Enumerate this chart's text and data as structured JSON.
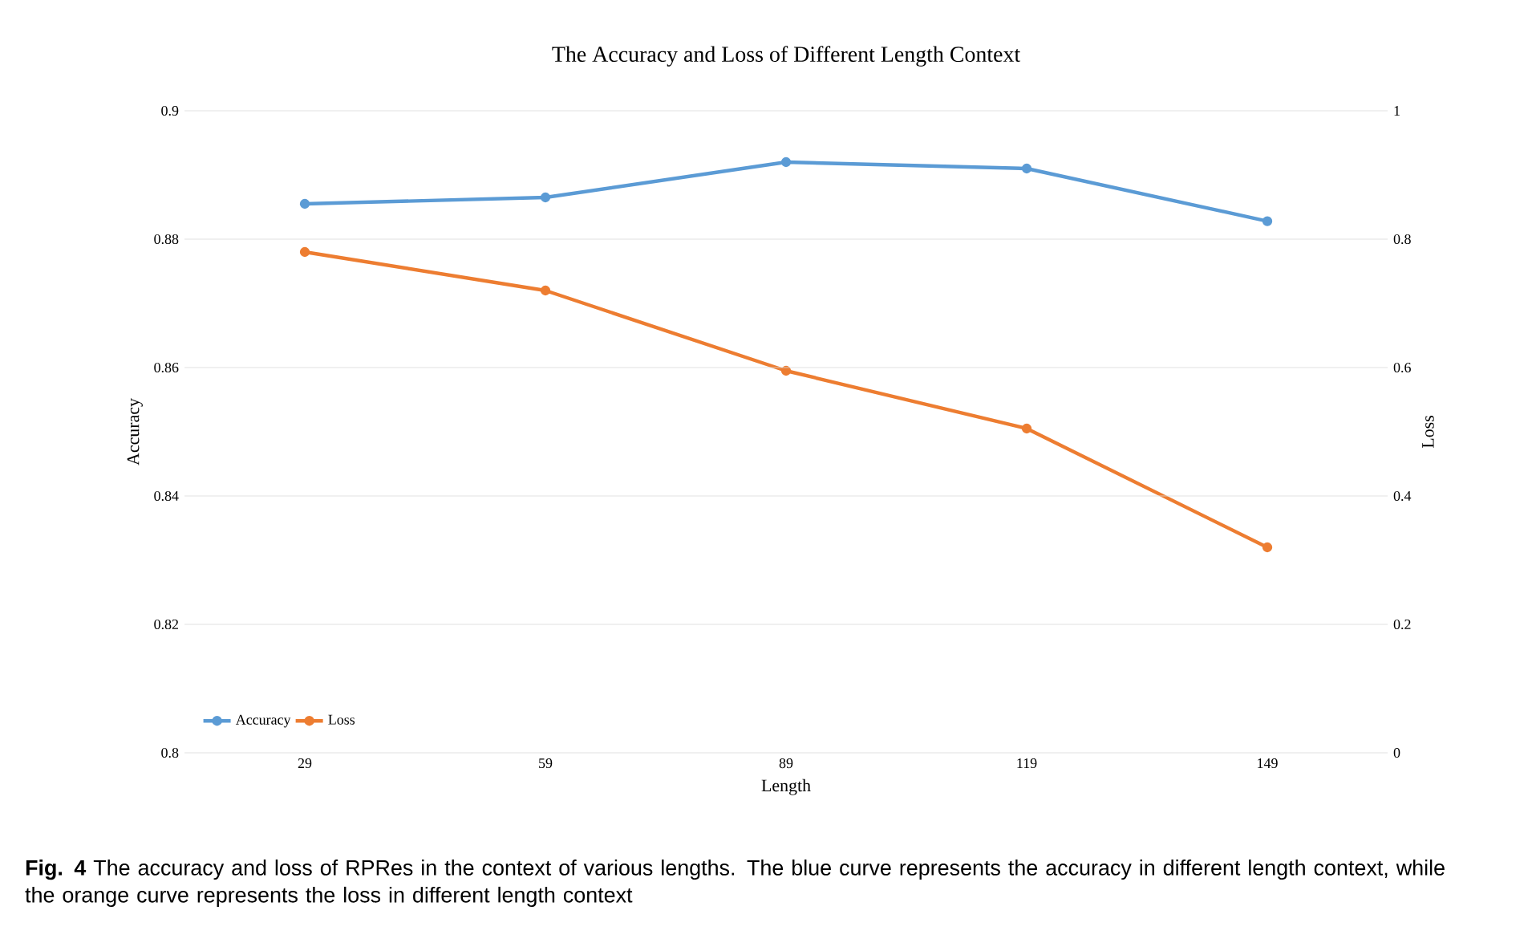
{
  "chart_data": {
    "type": "line",
    "title": "The Accuracy and Loss of Different Length Context",
    "categories": [
      "29",
      "59",
      "89",
      "119",
      "149"
    ],
    "series": [
      {
        "name": "Accuracy",
        "color": "#5b9bd5",
        "values": [
          0.8855,
          0.8865,
          0.892,
          0.891,
          0.8828
        ]
      },
      {
        "name": "Loss",
        "color": "#ed7d31",
        "axis": "y2",
        "values": [
          0.78,
          0.72,
          0.595,
          0.505,
          0.32
        ]
      }
    ],
    "xlabel": "Length",
    "ylabel": "Accuracy",
    "y2label": "Loss",
    "ylim": [
      0.8,
      0.9
    ],
    "yticks": [
      0.8,
      0.82,
      0.84,
      0.86,
      0.88,
      0.9
    ],
    "y2lim": [
      0,
      1
    ],
    "y2ticks": [
      0,
      0.2,
      0.4,
      0.6,
      0.8,
      1
    ],
    "grid": "y",
    "legend": "bottom left",
    "marker": "circle",
    "line_style": "solid",
    "annotations": [
      "**Fig. 4** The accuracy and loss of RPRes in the context of various lengths. The blue curve represents the accuracy in different length context, while the orange curve represents the loss in different length context"
    ]
  }
}
